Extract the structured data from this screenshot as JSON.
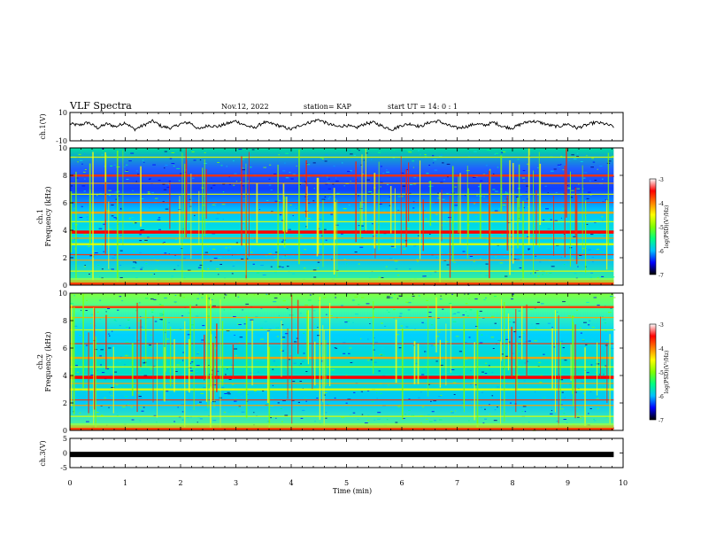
{
  "header": {
    "title": "VLF Spectra",
    "date": "Nov.12, 2022",
    "station": "station= KAP",
    "start": "start  UT =   14: 0  : 1"
  },
  "chart_data": [
    {
      "type": "line",
      "name": "ch1-waveform",
      "ylabel": "ch.1(V)",
      "ylim": [
        -10,
        10
      ],
      "yticks": [
        "10",
        "-10"
      ],
      "xlim": [
        0,
        10
      ],
      "note_levels": "signal fluctuates roughly between -3 and +5 V",
      "y_samples": [
        2,
        1,
        3,
        -1,
        2,
        0,
        3,
        -2,
        1,
        4,
        0,
        -1,
        2,
        3,
        -2,
        1,
        0,
        2,
        4,
        1,
        -1,
        3,
        2,
        0,
        -2,
        1,
        3,
        5,
        2,
        0,
        1,
        -1,
        2,
        3,
        0,
        -2,
        1,
        2,
        0,
        3,
        4,
        1,
        -1,
        0,
        2,
        1,
        3,
        0,
        -1,
        2,
        4,
        3,
        1,
        0,
        2,
        -1,
        1,
        3,
        2,
        0
      ]
    },
    {
      "type": "heatmap",
      "name": "ch1-spectrogram",
      "ylabel": "ch.1\nFrequency (kHz)",
      "ylim": [
        0,
        10
      ],
      "yticks": [
        "0",
        "2",
        "4",
        "6",
        "8",
        "10"
      ],
      "xlim": [
        0,
        10
      ],
      "colorbar": {
        "label": "log(PSD)(V²/Hz)",
        "range": [
          -7,
          -3
        ],
        "ticks": [
          "-3",
          "-4",
          "-5",
          "-6",
          "-7"
        ]
      },
      "bands_khz": [
        0.3,
        1.0,
        1.8,
        2.2,
        3.0,
        3.4,
        3.9,
        4.6,
        5.3,
        6.0,
        6.6,
        7.4,
        8.0,
        9.3
      ]
    },
    {
      "type": "heatmap",
      "name": "ch2-spectrogram",
      "ylabel": "ch.2\nFrequency (kHz)",
      "ylim": [
        0,
        10
      ],
      "yticks": [
        "0",
        "2",
        "4",
        "6",
        "8",
        "10"
      ],
      "xlim": [
        0,
        10
      ],
      "colorbar": {
        "label": "log(PSD)(V²/Hz)",
        "range": [
          -7,
          -3
        ],
        "ticks": [
          "-3",
          "-4",
          "-5",
          "-6",
          "-7"
        ]
      },
      "bands_khz": [
        0.3,
        1.0,
        1.8,
        2.2,
        3.0,
        3.4,
        3.9,
        4.6,
        5.3,
        6.3,
        7.3,
        8.2,
        9.0
      ]
    },
    {
      "type": "line",
      "name": "ch3-waveform",
      "ylabel": "ch.3(V)",
      "ylim": [
        -5,
        5
      ],
      "yticks": [
        "5",
        "0",
        "-5"
      ],
      "xlim": [
        0,
        10
      ],
      "value": -0.5
    }
  ],
  "xaxis": {
    "label": "Time  (min)",
    "ticks": [
      "0",
      "1",
      "2",
      "3",
      "4",
      "5",
      "6",
      "7",
      "8",
      "9",
      "10"
    ]
  },
  "colors": {
    "scale": [
      "#000080",
      "#0000ff",
      "#00a0ff",
      "#00e0e0",
      "#00ff80",
      "#80ff00",
      "#ffff00",
      "#ff8000",
      "#ff0000",
      "#ffffff"
    ]
  }
}
